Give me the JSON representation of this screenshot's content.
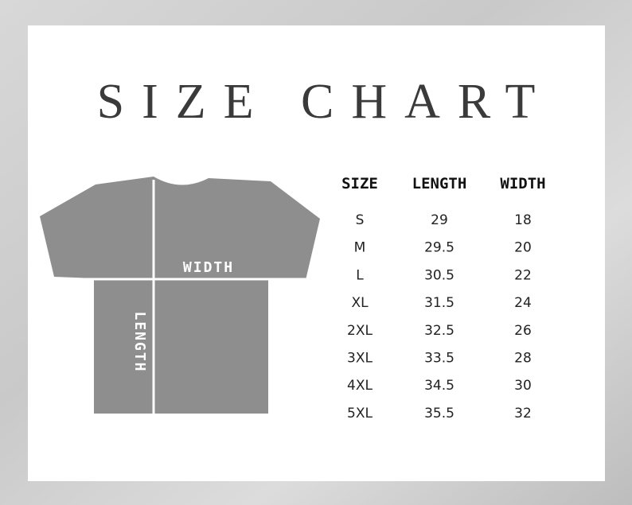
{
  "header": {
    "title": "SIZE CHART"
  },
  "diagram": {
    "width_label": "WIDTH",
    "length_label": "LENGTH"
  },
  "table": {
    "columns": [
      "SIZE",
      "LENGTH",
      "WIDTH"
    ],
    "rows": [
      [
        "S",
        "29",
        "18"
      ],
      [
        "M",
        "29.5",
        "20"
      ],
      [
        "L",
        "30.5",
        "22"
      ],
      [
        "XL",
        "31.5",
        "24"
      ],
      [
        "2XL",
        "32.5",
        "26"
      ],
      [
        "3XL",
        "33.5",
        "28"
      ],
      [
        "4XL",
        "34.5",
        "30"
      ],
      [
        "5XL",
        "35.5",
        "32"
      ]
    ]
  }
}
